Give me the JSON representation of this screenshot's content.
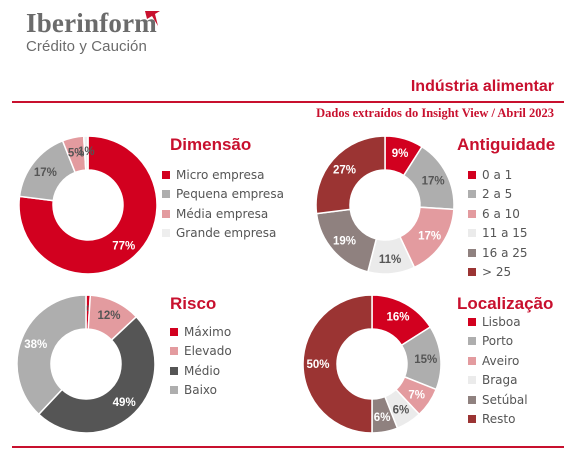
{
  "brand": {
    "name": "Iberinform",
    "subtitle": "Crédito y Caución"
  },
  "header": {
    "title": "Indústria alimentar",
    "subtitle": "Dados extraídos do Insight View / Abril 2023"
  },
  "colors": {
    "accent": "#c8102e"
  },
  "chart_data": [
    {
      "type": "pie",
      "title": "Dimensão",
      "categories": [
        "Micro empresa",
        "Pequena empresa",
        "Média empresa",
        "Grande empresa"
      ],
      "values": [
        77,
        17,
        5,
        1
      ],
      "labels": [
        "77%",
        "17%",
        "5%",
        "1%"
      ],
      "colors": [
        "#d2001f",
        "#aeaeae",
        "#e39b9f",
        "#eeeeee"
      ],
      "label_colors": [
        "#ffffff",
        "#555555",
        "#555555",
        "#555555"
      ],
      "legend": "right"
    },
    {
      "type": "pie",
      "title": "Antiguidade",
      "categories": [
        "0 a 1",
        "2 a 5",
        "6 a 10",
        "11 a 15",
        "16 a 25",
        "> 25"
      ],
      "values": [
        9,
        17,
        17,
        11,
        19,
        27
      ],
      "labels": [
        "9%",
        "17%",
        "17%",
        "11%",
        "19%",
        "27%"
      ],
      "colors": [
        "#d2001f",
        "#aeaeae",
        "#e39b9f",
        "#ebebeb",
        "#8f817f",
        "#9b3433"
      ],
      "label_colors": [
        "#ffffff",
        "#555555",
        "#ffffff",
        "#555555",
        "#ffffff",
        "#ffffff"
      ],
      "legend": "right"
    },
    {
      "type": "pie",
      "title": "Risco",
      "categories": [
        "Máximo",
        "Elevado",
        "Médio",
        "Baixo"
      ],
      "values": [
        1,
        12,
        49,
        38
      ],
      "labels": [
        "1%",
        "12%",
        "49%",
        "38%"
      ],
      "colors": [
        "#d2001f",
        "#e39b9f",
        "#555555",
        "#aeaeae"
      ],
      "label_colors": [
        "#555555",
        "#555555",
        "#ffffff",
        "#ffffff"
      ],
      "legend": "right"
    },
    {
      "type": "pie",
      "title": "Localização",
      "categories": [
        "Lisboa",
        "Porto",
        "Aveiro",
        "Braga",
        "Setúbal",
        "Resto"
      ],
      "values": [
        16,
        15,
        7,
        6,
        6,
        50
      ],
      "labels": [
        "16%",
        "15%",
        "7%",
        "6%",
        "6%",
        "50%"
      ],
      "colors": [
        "#d2001f",
        "#aeaeae",
        "#e39b9f",
        "#ebebeb",
        "#8f817f",
        "#9b3433"
      ],
      "label_colors": [
        "#ffffff",
        "#555555",
        "#ffffff",
        "#555555",
        "#ffffff",
        "#ffffff"
      ],
      "legend": "right"
    }
  ]
}
